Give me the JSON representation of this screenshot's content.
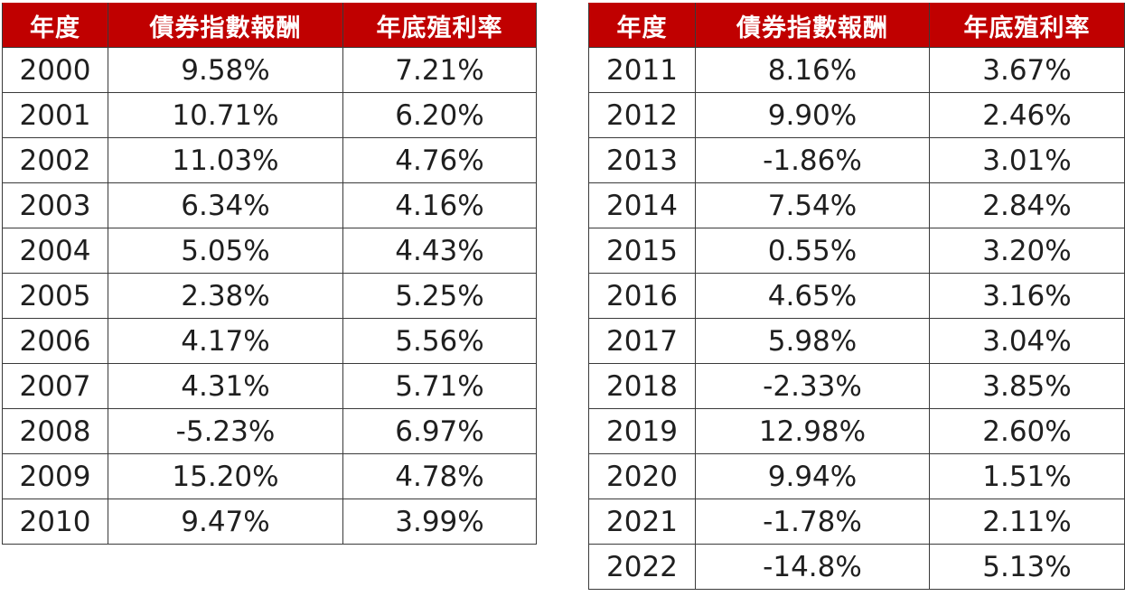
{
  "colors": {
    "header_bg": "#c00000",
    "header_text": "#ffffff",
    "cell_text": "#1f1f1f",
    "border": "#3a3a3a"
  },
  "left_table": {
    "headers": [
      "年度",
      "債券指數報酬",
      "年底殖利率"
    ],
    "rows": [
      [
        "2000",
        "9.58%",
        "7.21%"
      ],
      [
        "2001",
        "10.71%",
        "6.20%"
      ],
      [
        "2002",
        "11.03%",
        "4.76%"
      ],
      [
        "2003",
        "6.34%",
        "4.16%"
      ],
      [
        "2004",
        "5.05%",
        "4.43%"
      ],
      [
        "2005",
        "2.38%",
        "5.25%"
      ],
      [
        "2006",
        "4.17%",
        "5.56%"
      ],
      [
        "2007",
        "4.31%",
        "5.71%"
      ],
      [
        "2008",
        "-5.23%",
        "6.97%"
      ],
      [
        "2009",
        "15.20%",
        "4.78%"
      ],
      [
        "2010",
        "9.47%",
        "3.99%"
      ]
    ]
  },
  "right_table": {
    "headers": [
      "年度",
      "債券指數報酬",
      "年底殖利率"
    ],
    "rows": [
      [
        "2011",
        "8.16%",
        "3.67%"
      ],
      [
        "2012",
        "9.90%",
        "2.46%"
      ],
      [
        "2013",
        "-1.86%",
        "3.01%"
      ],
      [
        "2014",
        "7.54%",
        "2.84%"
      ],
      [
        "2015",
        "0.55%",
        "3.20%"
      ],
      [
        "2016",
        "4.65%",
        "3.16%"
      ],
      [
        "2017",
        "5.98%",
        "3.04%"
      ],
      [
        "2018",
        "-2.33%",
        "3.85%"
      ],
      [
        "2019",
        "12.98%",
        "2.60%"
      ],
      [
        "2020",
        "9.94%",
        "1.51%"
      ],
      [
        "2021",
        "-1.78%",
        "2.11%"
      ],
      [
        "2022",
        "-14.8%",
        "5.13%"
      ]
    ]
  }
}
